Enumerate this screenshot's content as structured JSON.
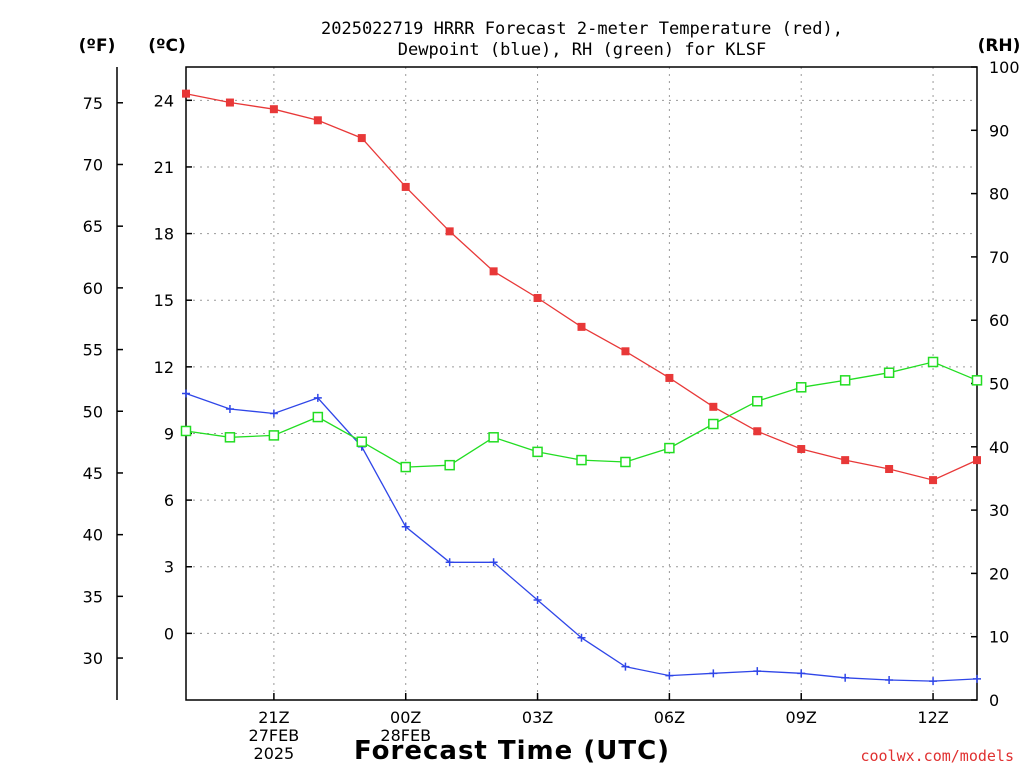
{
  "chart_data": {
    "type": "line",
    "title": "2025022719 HRRR Forecast 2-meter Temperature (red),",
    "subtitle": "Dewpoint (blue), RH (green) for KLSF",
    "xlabel": "Forecast Time (UTC)",
    "credit": "coolwx.com/models",
    "axis_units": {
      "fahrenheit": "(ºF)",
      "celsius": "(ºC)",
      "rh": "(RH)"
    },
    "x_hours_since_run": [
      0,
      1,
      2,
      3,
      4,
      5,
      6,
      7,
      8,
      9,
      10,
      11,
      12,
      13,
      14,
      15,
      16,
      17,
      18
    ],
    "x_tick_labels": [
      {
        "hour": 2,
        "lines": [
          "21Z",
          "27FEB",
          "2025"
        ]
      },
      {
        "hour": 5,
        "lines": [
          "00Z",
          "28FEB"
        ]
      },
      {
        "hour": 8,
        "lines": [
          "03Z"
        ]
      },
      {
        "hour": 11,
        "lines": [
          "06Z"
        ]
      },
      {
        "hour": 14,
        "lines": [
          "09Z"
        ]
      },
      {
        "hour": 17,
        "lines": [
          "12Z"
        ]
      }
    ],
    "celsius_axis": {
      "ylim": [
        -3,
        25.5
      ],
      "ticks": [
        0,
        3,
        6,
        9,
        12,
        15,
        18,
        21,
        24
      ]
    },
    "fahrenheit_axis": {
      "ticks": [
        30,
        35,
        40,
        45,
        50,
        55,
        60,
        65,
        70,
        75
      ]
    },
    "rh_axis": {
      "ylim": [
        0,
        100
      ],
      "ticks": [
        0,
        10,
        20,
        30,
        40,
        50,
        60,
        70,
        80,
        90,
        100
      ]
    },
    "series": [
      {
        "key": "temperature",
        "axis": "celsius",
        "color": "#e83838",
        "marker": "filled-square",
        "values": [
          24.3,
          23.9,
          23.6,
          23.1,
          22.3,
          20.1,
          18.1,
          16.3,
          15.1,
          13.8,
          12.7,
          11.5,
          10.2,
          9.1,
          8.3,
          7.8,
          7.4,
          6.9,
          7.8
        ]
      },
      {
        "key": "dewpoint",
        "axis": "celsius",
        "color": "#2f46e8",
        "marker": "plus",
        "values": [
          10.8,
          10.1,
          9.9,
          10.6,
          8.4,
          4.8,
          3.2,
          3.2,
          1.5,
          -0.2,
          -1.5,
          -1.9,
          -1.8,
          -1.7,
          -1.8,
          -2.0,
          -2.1,
          -2.15,
          -2.05
        ]
      },
      {
        "key": "rh",
        "axis": "rh",
        "color": "#22dd22",
        "marker": "open-square",
        "values": [
          42.5,
          41.5,
          41.8,
          44.7,
          40.8,
          36.8,
          37.1,
          41.5,
          39.2,
          37.9,
          37.6,
          39.8,
          43.6,
          47.2,
          49.4,
          50.5,
          51.7,
          53.4,
          50.5
        ]
      }
    ]
  }
}
